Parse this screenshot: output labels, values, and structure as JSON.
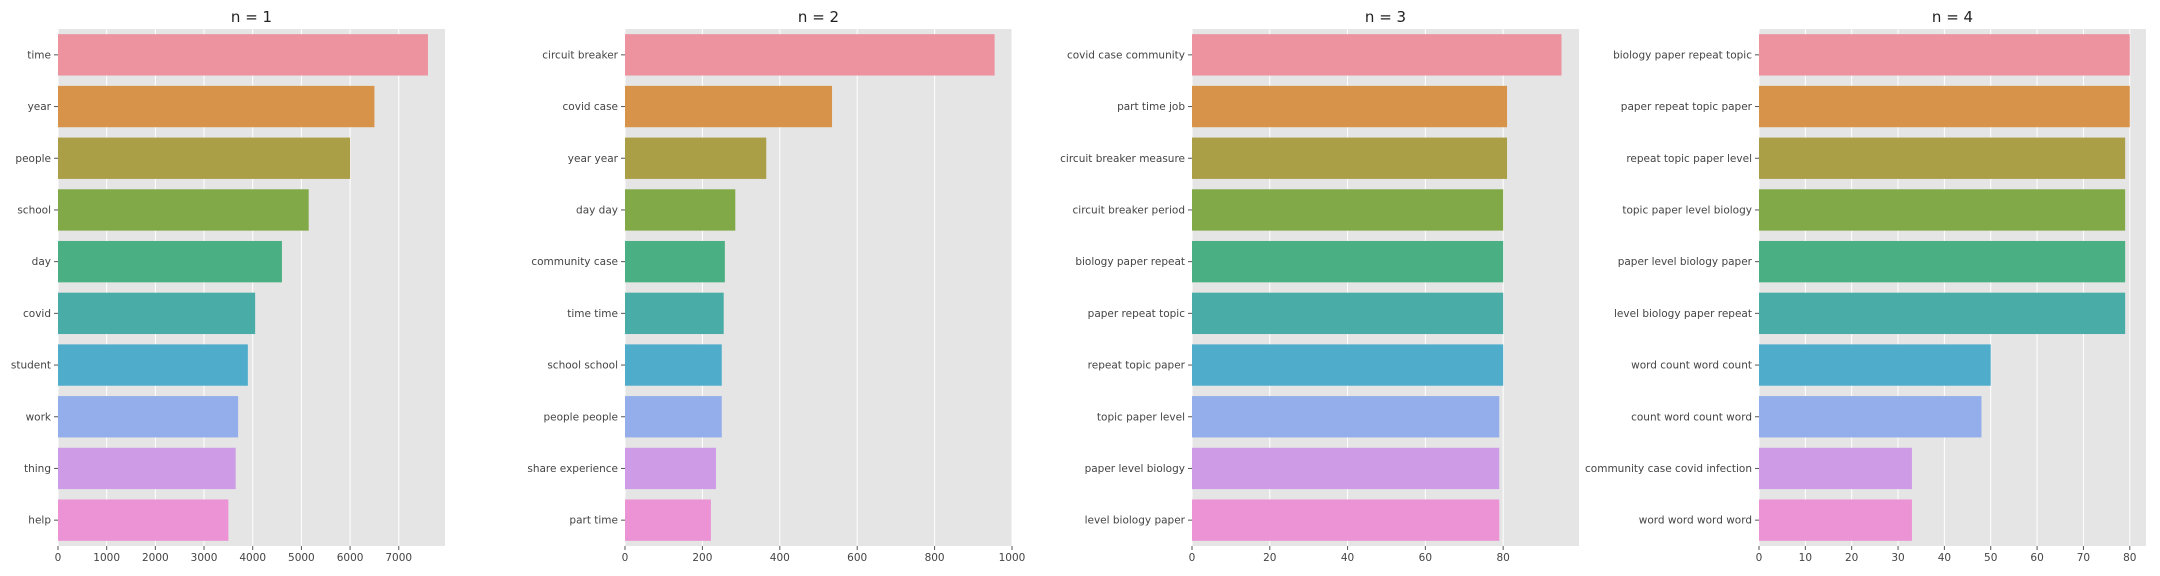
{
  "chart_data": [
    {
      "type": "bar",
      "orientation": "horizontal",
      "title": "n = 1",
      "categories": [
        "time",
        "year",
        "people",
        "school",
        "day",
        "covid",
        "student",
        "work",
        "thing",
        "help"
      ],
      "values": [
        7600,
        6500,
        6000,
        5150,
        4600,
        4050,
        3900,
        3700,
        3650,
        3500
      ],
      "xlim": [
        0,
        7950
      ],
      "xticks": [
        0,
        1000,
        2000,
        3000,
        4000,
        5000,
        6000,
        7000
      ],
      "grid": true
    },
    {
      "type": "bar",
      "orientation": "horizontal",
      "title": "n = 2",
      "categories": [
        "circuit breaker",
        "covid case",
        "year year",
        "day day",
        "community case",
        "time time",
        "school school",
        "people people",
        "share experience",
        "part time"
      ],
      "values": [
        955,
        535,
        365,
        285,
        258,
        255,
        250,
        250,
        235,
        222
      ],
      "xlim": [
        0,
        1000
      ],
      "xticks": [
        0,
        200,
        400,
        600,
        800,
        1000
      ],
      "grid": true
    },
    {
      "type": "bar",
      "orientation": "horizontal",
      "title": "n = 3",
      "categories": [
        "covid case community",
        "part time job",
        "circuit breaker measure",
        "circuit breaker period",
        "biology paper repeat",
        "paper repeat topic",
        "repeat topic paper",
        "topic paper level",
        "paper level biology",
        "level biology paper"
      ],
      "values": [
        95,
        81,
        81,
        80,
        80,
        80,
        80,
        79,
        79,
        79
      ],
      "xlim": [
        0,
        99.5
      ],
      "xticks": [
        0,
        20,
        40,
        60,
        80
      ],
      "grid": true
    },
    {
      "type": "bar",
      "orientation": "horizontal",
      "title": "n = 4",
      "categories": [
        "biology paper repeat topic",
        "paper repeat topic paper",
        "repeat topic paper level",
        "topic paper level biology",
        "paper level biology paper",
        "level biology paper repeat",
        "word count word count",
        "count word count word",
        "community case covid infection",
        "word word word word"
      ],
      "values": [
        80,
        80,
        79,
        79,
        79,
        79,
        50,
        48,
        33,
        33
      ],
      "xlim": [
        0,
        83.5
      ],
      "xticks": [
        0,
        10,
        20,
        30,
        40,
        50,
        60,
        70,
        80
      ],
      "grid": true
    }
  ],
  "colors": [
    "#ec939f",
    "#d8934a",
    "#aa9f46",
    "#81a948",
    "#4aaf82",
    "#4aaca6",
    "#4fadcb",
    "#93aeea",
    "#ce9be6",
    "#eb93d4"
  ],
  "style": {
    "plot_background": "#e5e5e5",
    "grid_color": "#ffffff",
    "tick_label_color": "#444444"
  }
}
